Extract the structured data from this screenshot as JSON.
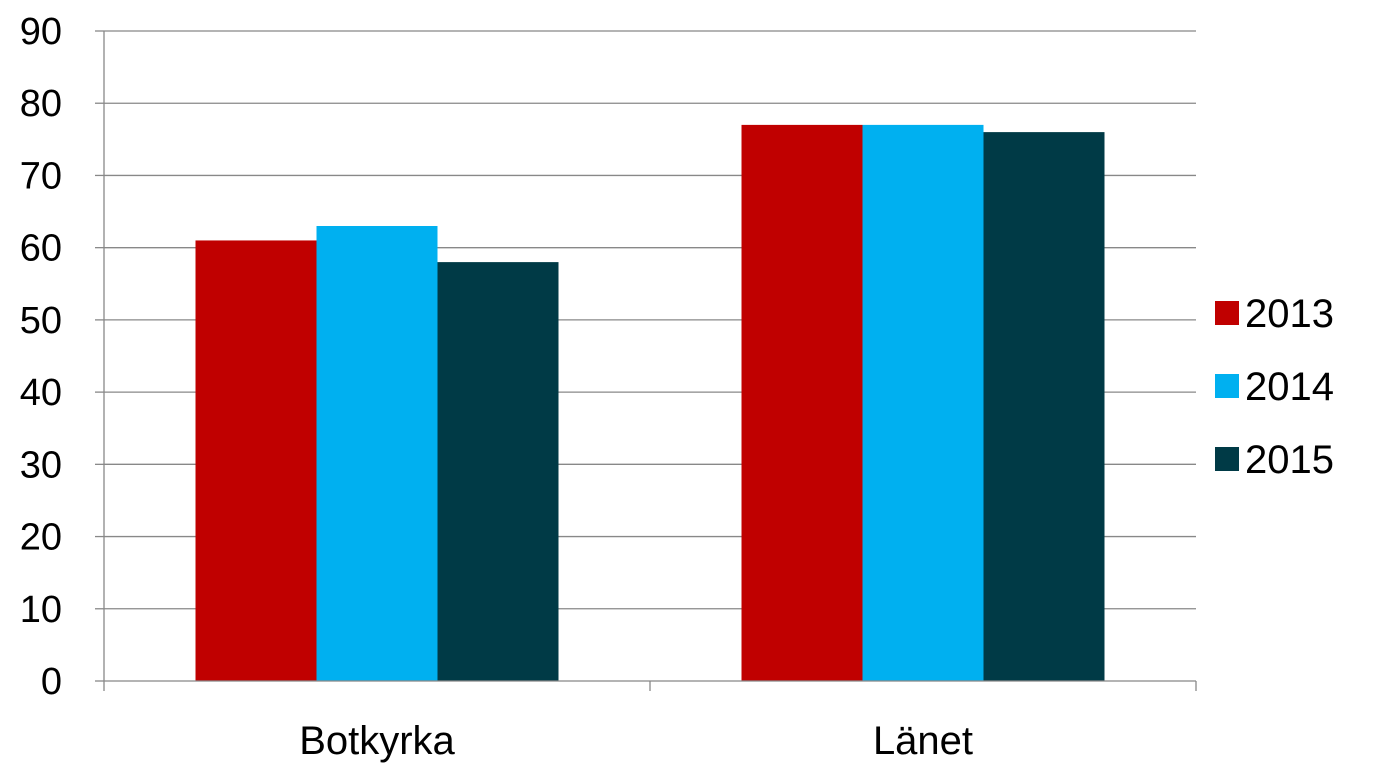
{
  "chart_data": {
    "type": "bar",
    "title": "",
    "xlabel": "",
    "ylabel": "",
    "categories": [
      "Botkyrka",
      "Länet"
    ],
    "series": [
      {
        "name": "2013",
        "color": "#c00000",
        "values": [
          61,
          77
        ]
      },
      {
        "name": "2014",
        "color": "#00b0f0",
        "values": [
          63,
          77
        ]
      },
      {
        "name": "2015",
        "color": "#003a46",
        "values": [
          58,
          76
        ]
      }
    ],
    "ylim": [
      0,
      90
    ],
    "yticks": [
      "0",
      "10",
      "20",
      "30",
      "40",
      "50",
      "60",
      "70",
      "80",
      "90"
    ],
    "grid": true,
    "legend_position": "right"
  }
}
